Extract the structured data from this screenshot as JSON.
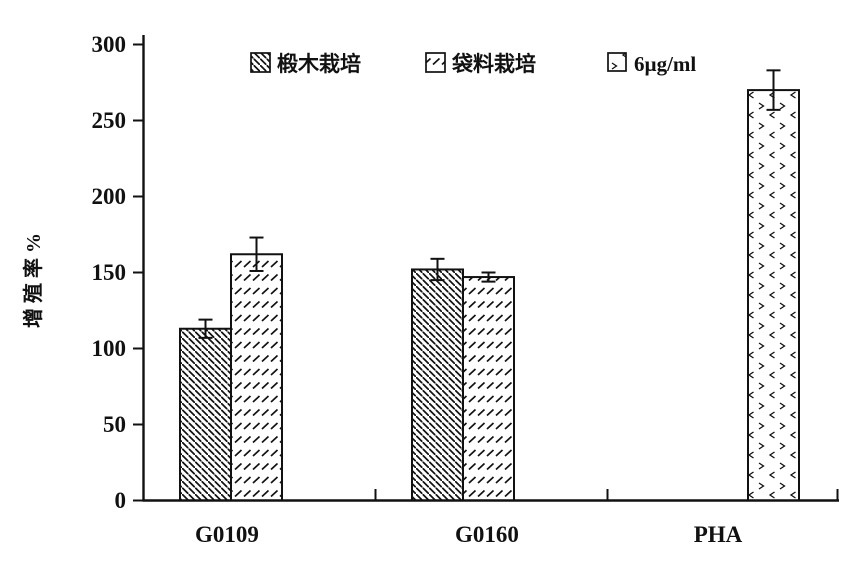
{
  "figure": {
    "background": "#ffffff",
    "ink": "#111111"
  },
  "chart_data": {
    "type": "bar",
    "categories": [
      "G0109",
      "G0160",
      "PHA"
    ],
    "series": [
      {
        "name": "椴木栽培",
        "pattern": "backslash-hatch",
        "values": [
          113,
          152,
          null
        ],
        "errors": [
          6,
          7,
          null
        ]
      },
      {
        "name": "袋料栽培",
        "pattern": "slash-rows",
        "values": [
          162,
          147,
          null
        ],
        "errors": [
          11,
          3,
          null
        ]
      },
      {
        "name": "6µg/ml",
        "pattern": "chevron-dots",
        "values": [
          null,
          null,
          270
        ],
        "errors": [
          null,
          null,
          13
        ]
      }
    ],
    "title": "",
    "xlabel": "",
    "ylabel": "增殖率%",
    "ylim": [
      0,
      300
    ],
    "ytick_step": 50,
    "yticks": [
      0,
      50,
      100,
      150,
      200,
      250,
      300
    ],
    "grid": false,
    "error_bars": true,
    "legend_position": "top-inside"
  }
}
